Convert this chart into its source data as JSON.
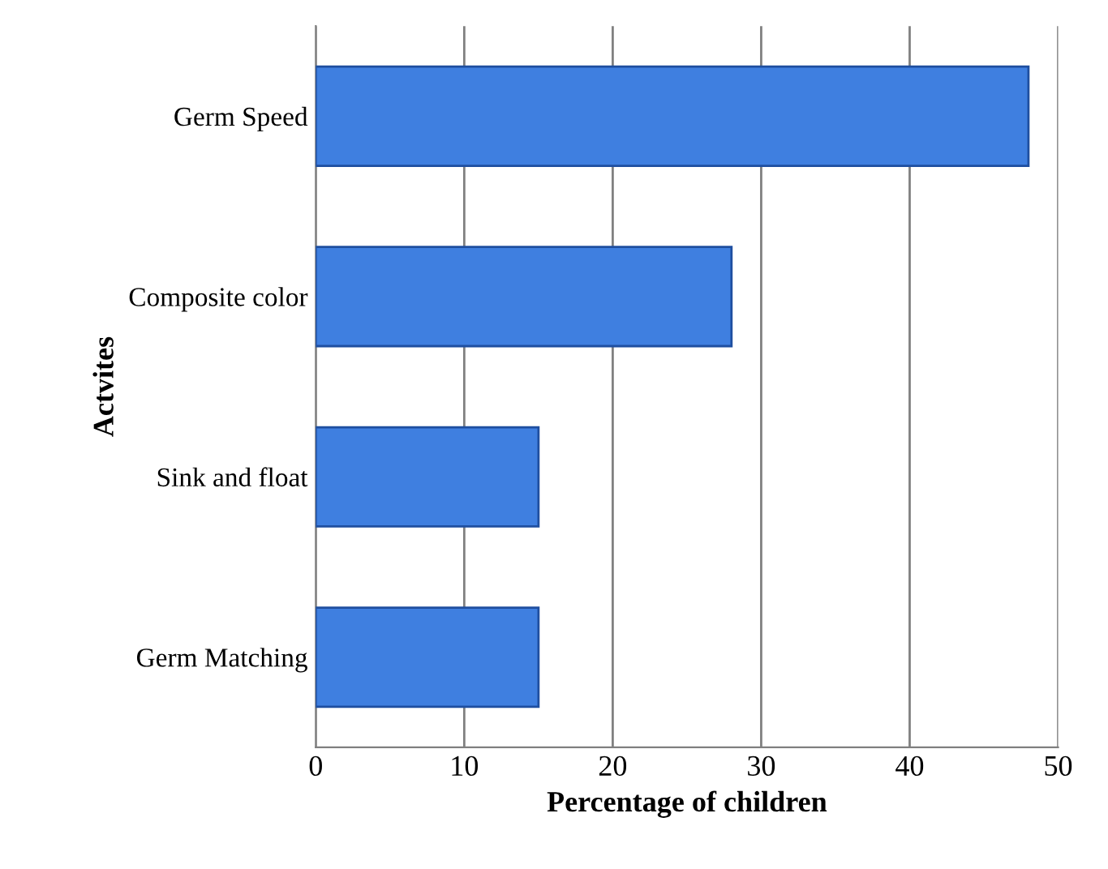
{
  "chart_data": {
    "type": "bar",
    "orientation": "horizontal",
    "categories": [
      "Germ Speed",
      "Composite color",
      "Sink and float",
      "Germ Matching"
    ],
    "values": [
      48,
      28,
      15,
      15
    ],
    "color": "#3f7fe0",
    "xlim": [
      0,
      50
    ],
    "xticks": [
      0,
      10,
      20,
      30,
      40,
      50
    ],
    "xlabel": "Percentage of children",
    "ylabel": "Actvites",
    "grid": "x"
  }
}
